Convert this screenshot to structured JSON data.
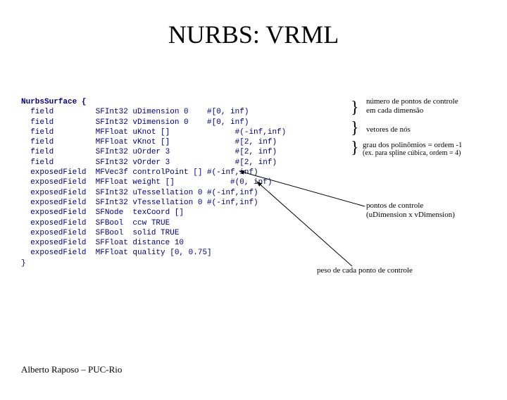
{
  "title": "NURBS: VRML",
  "code": {
    "header": "NurbsSurface {",
    "lines": [
      "  field         SFInt32 uDimension 0    #[0, inf)",
      "  field         SFInt32 vDimension 0    #[0, inf)",
      "  field         MFFloat uKnot []              #(-inf,inf)",
      "  field         MFFloat vKnot []              #[2, inf)",
      "  field         SFInt32 uOrder 3              #[2, inf)",
      "  field         SFInt32 vOrder 3              #[2, inf)",
      "  exposedField  MFVec3f controlPoint [] #(-inf,inf)",
      "  exposedField  MFFloat weight []            #(0, inf)",
      "  exposedField  SFInt32 uTessellation 0 #(-inf,inf)",
      "  exposedField  SFInt32 vTessellation 0 #(-inf,inf)",
      "  exposedField  SFNode  texCoord []",
      "  exposedField  SFBool  ccw TRUE",
      "  exposedField  SFBool  solid TRUE",
      "  exposedField  SFFloat distance 10",
      "  exposedField  MFFloat quality [0, 0.75]",
      "}"
    ]
  },
  "annotations": {
    "num_pontos": "número de pontos de controle\nem cada dimensão",
    "vetores": "vetores de nós",
    "grau": "grau dos polinômios = ordem -1",
    "grau_ex": "(ex. para spline cúbica, ordem = 4)",
    "pontos_controle": "pontos de controle\n(uDimension x vDimension)",
    "peso": "peso de cada ponto de controle"
  },
  "footer": "Alberto Raposo – PUC-Rio",
  "colors": {
    "code": "#000080",
    "text": "#000000",
    "bg": "#ffffff"
  }
}
